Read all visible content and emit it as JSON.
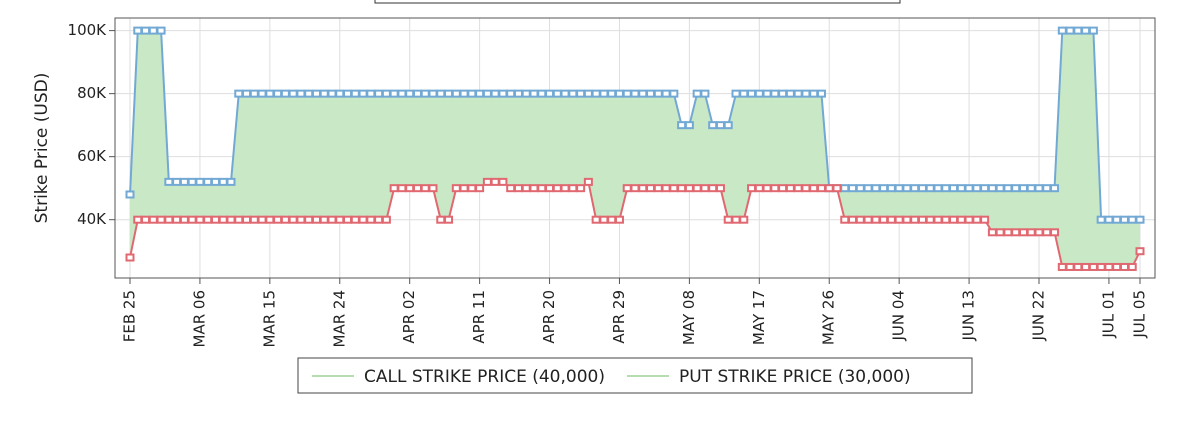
{
  "chart_data": {
    "type": "line",
    "y_label": "Strike Price (USD)",
    "x": [
      "FEB 25",
      "FEB 26",
      "FEB 27",
      "FEB 28",
      "MAR 01",
      "MAR 02",
      "MAR 03",
      "MAR 04",
      "MAR 05",
      "MAR 06",
      "MAR 07",
      "MAR 08",
      "MAR 09",
      "MAR 10",
      "MAR 11",
      "MAR 12",
      "MAR 13",
      "MAR 14",
      "MAR 15",
      "MAR 16",
      "MAR 17",
      "MAR 18",
      "MAR 19",
      "MAR 20",
      "MAR 21",
      "MAR 22",
      "MAR 23",
      "MAR 24",
      "MAR 25",
      "MAR 26",
      "MAR 27",
      "MAR 28",
      "MAR 29",
      "MAR 30",
      "MAR 31",
      "APR 01",
      "APR 02",
      "APR 03",
      "APR 04",
      "APR 05",
      "APR 06",
      "APR 07",
      "APR 08",
      "APR 09",
      "APR 10",
      "APR 11",
      "APR 12",
      "APR 13",
      "APR 14",
      "APR 15",
      "APR 16",
      "APR 17",
      "APR 18",
      "APR 19",
      "APR 20",
      "APR 21",
      "APR 22",
      "APR 23",
      "APR 24",
      "APR 25",
      "APR 26",
      "APR 27",
      "APR 28",
      "APR 29",
      "APR 30",
      "MAY 01",
      "MAY 02",
      "MAY 03",
      "MAY 04",
      "MAY 05",
      "MAY 06",
      "MAY 07",
      "MAY 08",
      "MAY 09",
      "MAY 10",
      "MAY 11",
      "MAY 12",
      "MAY 13",
      "MAY 14",
      "MAY 15",
      "MAY 16",
      "MAY 17",
      "MAY 18",
      "MAY 19",
      "MAY 20",
      "MAY 21",
      "MAY 22",
      "MAY 23",
      "MAY 24",
      "MAY 25",
      "MAY 26",
      "MAY 27",
      "MAY 28",
      "MAY 29",
      "MAY 30",
      "MAY 31",
      "JUN 01",
      "JUN 02",
      "JUN 03",
      "JUN 04",
      "JUN 05",
      "JUN 06",
      "JUN 07",
      "JUN 08",
      "JUN 09",
      "JUN 10",
      "JUN 11",
      "JUN 12",
      "JUN 13",
      "JUN 14",
      "JUN 15",
      "JUN 16",
      "JUN 17",
      "JUN 18",
      "JUN 19",
      "JUN 20",
      "JUN 21",
      "JUN 22",
      "JUN 23",
      "JUN 24",
      "JUN 25",
      "JUN 26",
      "JUN 27",
      "JUN 28",
      "JUN 29",
      "JUN 30",
      "JUL 01",
      "JUL 02",
      "JUL 03",
      "JUL 04",
      "JUL 05"
    ],
    "series": [
      {
        "name": "CALL STRIKE PRICE (40,000)",
        "color": "#72a9d4",
        "values": [
          48000,
          100000,
          100000,
          100000,
          100000,
          52000,
          52000,
          52000,
          52000,
          52000,
          52000,
          52000,
          52000,
          52000,
          80000,
          80000,
          80000,
          80000,
          80000,
          80000,
          80000,
          80000,
          80000,
          80000,
          80000,
          80000,
          80000,
          80000,
          80000,
          80000,
          80000,
          80000,
          80000,
          80000,
          80000,
          80000,
          80000,
          80000,
          80000,
          80000,
          80000,
          80000,
          80000,
          80000,
          80000,
          80000,
          80000,
          80000,
          80000,
          80000,
          80000,
          80000,
          80000,
          80000,
          80000,
          80000,
          80000,
          80000,
          80000,
          80000,
          80000,
          80000,
          80000,
          80000,
          80000,
          80000,
          80000,
          80000,
          80000,
          80000,
          80000,
          70000,
          70000,
          80000,
          80000,
          70000,
          70000,
          70000,
          80000,
          80000,
          80000,
          80000,
          80000,
          80000,
          80000,
          80000,
          80000,
          80000,
          80000,
          80000,
          50000,
          50000,
          50000,
          50000,
          50000,
          50000,
          50000,
          50000,
          50000,
          50000,
          50000,
          50000,
          50000,
          50000,
          50000,
          50000,
          50000,
          50000,
          50000,
          50000,
          50000,
          50000,
          50000,
          50000,
          50000,
          50000,
          50000,
          50000,
          50000,
          50000,
          100000,
          100000,
          100000,
          100000,
          100000,
          40000,
          40000,
          40000,
          40000,
          40000,
          40000
        ]
      },
      {
        "name": "PUT STRIKE PRICE (30,000)",
        "color": "#e06870",
        "values": [
          28000,
          40000,
          40000,
          40000,
          40000,
          40000,
          40000,
          40000,
          40000,
          40000,
          40000,
          40000,
          40000,
          40000,
          40000,
          40000,
          40000,
          40000,
          40000,
          40000,
          40000,
          40000,
          40000,
          40000,
          40000,
          40000,
          40000,
          40000,
          40000,
          40000,
          40000,
          40000,
          40000,
          40000,
          50000,
          50000,
          50000,
          50000,
          50000,
          50000,
          40000,
          40000,
          50000,
          50000,
          50000,
          50000,
          52000,
          52000,
          52000,
          50000,
          50000,
          50000,
          50000,
          50000,
          50000,
          50000,
          50000,
          50000,
          50000,
          52000,
          40000,
          40000,
          40000,
          40000,
          50000,
          50000,
          50000,
          50000,
          50000,
          50000,
          50000,
          50000,
          50000,
          50000,
          50000,
          50000,
          50000,
          40000,
          40000,
          40000,
          50000,
          50000,
          50000,
          50000,
          50000,
          50000,
          50000,
          50000,
          50000,
          50000,
          50000,
          50000,
          40000,
          40000,
          40000,
          40000,
          40000,
          40000,
          40000,
          40000,
          40000,
          40000,
          40000,
          40000,
          40000,
          40000,
          40000,
          40000,
          40000,
          40000,
          40000,
          36000,
          36000,
          36000,
          36000,
          36000,
          36000,
          36000,
          36000,
          36000,
          25000,
          25000,
          25000,
          25000,
          25000,
          25000,
          25000,
          25000,
          25000,
          25000,
          30000
        ]
      }
    ],
    "fill_color": "#c9e8c6",
    "legend_line_color": "#b5ddb0",
    "ylim": [
      21500,
      104000
    ],
    "yticks": [
      {
        "value": 40000,
        "label": "40K"
      },
      {
        "value": 60000,
        "label": "60K"
      },
      {
        "value": 80000,
        "label": "80K"
      },
      {
        "value": 100000,
        "label": "100K"
      }
    ],
    "xticks": [
      "FEB 25",
      "MAR 06",
      "MAR 15",
      "MAR 24",
      "APR 02",
      "APR 11",
      "APR 20",
      "APR 29",
      "MAY 08",
      "MAY 17",
      "MAY 26",
      "JUN 04",
      "JUN 13",
      "JUN 22",
      "JUL 01",
      "JUL 05"
    ],
    "grid": true,
    "legend": "bottom"
  }
}
